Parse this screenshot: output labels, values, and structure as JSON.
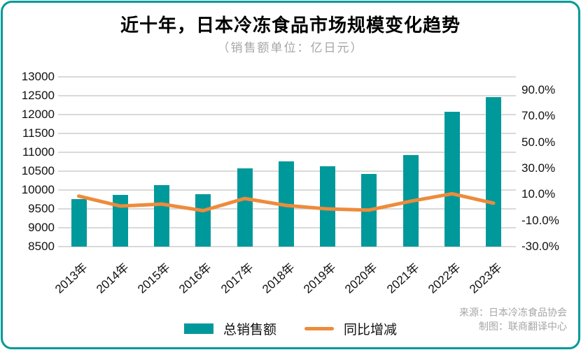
{
  "title": "近十年，日本冷冻食品市场规模变化趋势",
  "subtitle": "（销售额单位：亿日元）",
  "legend": [
    {
      "label": "总销售额",
      "type": "bar",
      "color": "#00999b"
    },
    {
      "label": "同比增减",
      "type": "line",
      "color": "#ee8b3b"
    }
  ],
  "source": {
    "line1": "来源：日本冷冻食品协会",
    "line2": "制图：联商翻译中心"
  },
  "colors": {
    "bar": "#00999b",
    "line": "#ee8b3b",
    "grid": "#d9d9d9",
    "frame": "#00999b",
    "muted_text": "#a6a6a6"
  },
  "chart_data": {
    "type": "bar",
    "subtype": "combo-bar-line",
    "title": "近十年，日本冷冻食品市场规模变化趋势",
    "unit_note": "销售额单位：亿日元",
    "categories": [
      "2013年",
      "2014年",
      "2015年",
      "2016年",
      "2017年",
      "2018年",
      "2019年",
      "2020年",
      "2021年",
      "2022年",
      "2023年"
    ],
    "series": [
      {
        "name": "总销售额",
        "type": "bar",
        "axis": "left",
        "color": "#00999b",
        "values": [
          9760,
          9867,
          10126,
          9888,
          10575,
          10749,
          10629,
          10419,
          10916,
          12065,
          12464
        ]
      },
      {
        "name": "同比增减",
        "type": "line",
        "axis": "right",
        "color": "#ee8b3b",
        "values": [
          8.7,
          1.1,
          2.6,
          -2.4,
          6.9,
          1.6,
          -1.1,
          -2.0,
          4.8,
          10.5,
          3.3
        ],
        "value_format": "percent"
      }
    ],
    "left_axis": {
      "min": 8500,
      "max": 13000,
      "step": 500,
      "ticks": [
        13000,
        12500,
        12000,
        11500,
        11000,
        10500,
        10000,
        9500,
        9000,
        8500
      ]
    },
    "right_axis": {
      "ticks": [
        90,
        70,
        50,
        30,
        10,
        -10,
        -30
      ],
      "tick_format": "#.0%"
    },
    "grid": true,
    "legend_position": "bottom"
  }
}
